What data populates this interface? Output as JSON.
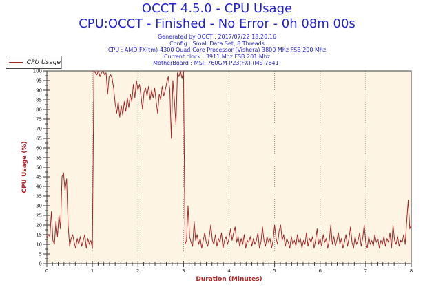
{
  "header": {
    "title": "OCCT 4.5.0 - CPU Usage",
    "subtitle": "CPU:OCCT - Finished - No Error - 0h 08m 00s",
    "title_color": "#2424d0",
    "info_lines": [
      "Generated by OCCT : 2017/07/22 18:20:16",
      "Config : Small Data Set, 8 Threads",
      "CPU : AMD FX(tm)-4300 Quad-Core Processor (Vishera) 3800 Mhz FSB 200 Mhz",
      "Current clock : 3911 Mhz FSB 201 Mhz",
      "MotherBoard : MSI: 760GM-P23(FX) (MS-7641)"
    ]
  },
  "legend": {
    "label": "CPU Usage",
    "line_color": "#a52828"
  },
  "chart_data": {
    "type": "line",
    "title": "OCCT 4.5.0 - CPU Usage",
    "xlabel": "Duration (Minutes)",
    "ylabel": "CPU Usage (%)",
    "xlim": [
      0,
      8
    ],
    "ylim": [
      0,
      100
    ],
    "x_ticks": [
      0,
      1,
      2,
      3,
      4,
      5,
      6,
      7,
      8
    ],
    "x_minor_step": 0.125,
    "y_tick_step": 5,
    "y_minor_step": 2.5,
    "grid": "vertical-dotted",
    "legend_position": "top-left-outside",
    "plot_bg": "#fdf4e3",
    "grid_color": "#8f8f8f",
    "frame_color": "#3d3d3d",
    "tick_label_color": "#1a1a1a",
    "axis_title_color": "#b32424",
    "series": [
      {
        "name": "CPU Usage",
        "color": "#a52828",
        "x_start": 0,
        "x_step": 0.0333333,
        "values": [
          13,
          15,
          14,
          27,
          12,
          10,
          22,
          14,
          25,
          18,
          45,
          47,
          38,
          44,
          20,
          9,
          13,
          15,
          11,
          8,
          13,
          10,
          14,
          9,
          12,
          15,
          8,
          13,
          10,
          12,
          8,
          100,
          99,
          98,
          100,
          97,
          99,
          100,
          98,
          99,
          88,
          97,
          98,
          96,
          91,
          83,
          78,
          84,
          76,
          82,
          77,
          84,
          79,
          86,
          81,
          88,
          84,
          93,
          86,
          95,
          90,
          93,
          87,
          80,
          89,
          91,
          87,
          92,
          85,
          90,
          86,
          91,
          84,
          78,
          88,
          85,
          92,
          87,
          90,
          94,
          97,
          90,
          65,
          95,
          85,
          72,
          99,
          97,
          100,
          96,
          100,
          10,
          12,
          30,
          14,
          11,
          9,
          22,
          12,
          15,
          10,
          13,
          8,
          12,
          16,
          11,
          9,
          14,
          20,
          12,
          10,
          15,
          9,
          13,
          11,
          16,
          8,
          12,
          14,
          10,
          13,
          18,
          12,
          16,
          19,
          11,
          14,
          9,
          13,
          10,
          15,
          8,
          12,
          11,
          14,
          9,
          13,
          10,
          12,
          16,
          8,
          11,
          19,
          12,
          9,
          14,
          11,
          13,
          8,
          12,
          20,
          13,
          10,
          17,
          20,
          12,
          15,
          9,
          13,
          11,
          8,
          14,
          10,
          12,
          9,
          15,
          11,
          13,
          8,
          12,
          10,
          16,
          9,
          13,
          11,
          14,
          8,
          12,
          18,
          10,
          13,
          9,
          15,
          11,
          13,
          8,
          12,
          20,
          10,
          14,
          9,
          12,
          16,
          10,
          13,
          8,
          11,
          15,
          9,
          13,
          19,
          11,
          8,
          14,
          10,
          12,
          16,
          9,
          13,
          20,
          11,
          8,
          14,
          10,
          12,
          9,
          15,
          11,
          13,
          8,
          12,
          10,
          14,
          9,
          13,
          11,
          16,
          8,
          20,
          12,
          10,
          14,
          9,
          12,
          11,
          15,
          10,
          22,
          33,
          18,
          20
        ]
      }
    ]
  }
}
